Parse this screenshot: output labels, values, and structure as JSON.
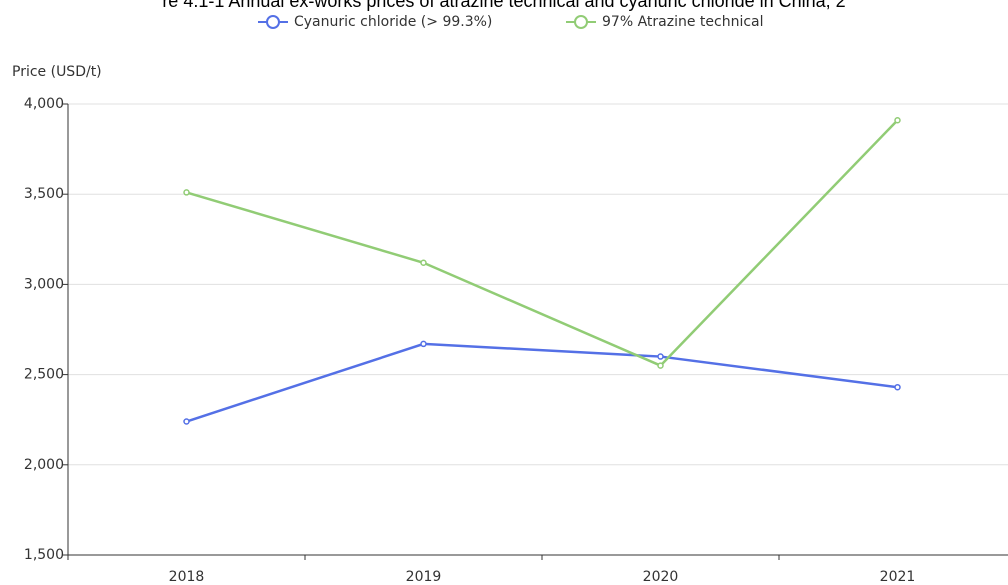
{
  "chart_data": {
    "type": "line",
    "title": "re 4.1-1 Annual ex-works prices of atrazine technical and cyanuric chloride in China, 2",
    "y_label": "Price (USD/t)",
    "categories": [
      "2018",
      "2019",
      "2020",
      "2021"
    ],
    "series": [
      {
        "name": "Cyanuric chloride (> 99.3%)",
        "color": "#5470e6",
        "values": [
          2240,
          2670,
          2600,
          2430
        ]
      },
      {
        "name": "97% Atrazine technical",
        "color": "#91cc75",
        "values": [
          3510,
          3120,
          2550,
          3910
        ]
      }
    ],
    "ylim": [
      1500,
      4000
    ],
    "yticks": [
      {
        "value": 1500,
        "label": "1,500"
      },
      {
        "value": 2000,
        "label": "2,000"
      },
      {
        "value": 2500,
        "label": "2,500"
      },
      {
        "value": 3000,
        "label": "3,000"
      },
      {
        "value": 3500,
        "label": "3,500"
      },
      {
        "value": 4000,
        "label": "4,000"
      }
    ],
    "grid": true
  }
}
